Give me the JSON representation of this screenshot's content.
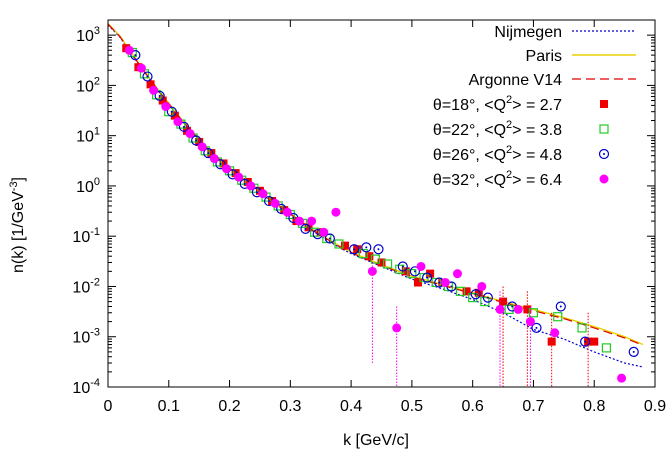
{
  "chart_data": {
    "type": "scatter",
    "xlabel": "k [GeV/c]",
    "ylabel_main": "n(k) [1/GeV",
    "ylabel_sup": "-3",
    "ylabel_end": "]",
    "xlim": [
      0,
      0.9
    ],
    "ylim": [
      0.0001,
      2000
    ],
    "yscale": "log",
    "grid": false,
    "legend_position": "top-right",
    "x_ticks": [
      {
        "value": 0,
        "label": "0"
      },
      {
        "value": 0.1,
        "label": "0.1"
      },
      {
        "value": 0.2,
        "label": "0.2"
      },
      {
        "value": 0.3,
        "label": "0.3"
      },
      {
        "value": 0.4,
        "label": "0.4"
      },
      {
        "value": 0.5,
        "label": "0.5"
      },
      {
        "value": 0.6,
        "label": "0.6"
      },
      {
        "value": 0.7,
        "label": "0.7"
      },
      {
        "value": 0.8,
        "label": "0.8"
      },
      {
        "value": 0.9,
        "label": "0.9"
      }
    ],
    "y_ticks": [
      {
        "value": 1000,
        "base": "10",
        "exp": "3"
      },
      {
        "value": 100,
        "base": "10",
        "exp": "2"
      },
      {
        "value": 10,
        "base": "10",
        "exp": "1"
      },
      {
        "value": 1,
        "base": "10",
        "exp": "0"
      },
      {
        "value": 0.1,
        "base": "10",
        "exp": "-1"
      },
      {
        "value": 0.01,
        "base": "10",
        "exp": "-2"
      },
      {
        "value": 0.001,
        "base": "10",
        "exp": "-3"
      },
      {
        "value": 0.0001,
        "base": "10",
        "exp": "-4"
      }
    ],
    "curves": [
      {
        "name": "Nijmegen",
        "color": "#0000cc",
        "style": "dotted",
        "x": [
          0,
          0.02,
          0.04,
          0.06,
          0.08,
          0.1,
          0.12,
          0.14,
          0.16,
          0.18,
          0.2,
          0.22,
          0.24,
          0.26,
          0.28,
          0.3,
          0.32,
          0.34,
          0.36,
          0.38,
          0.4,
          0.45,
          0.5,
          0.55,
          0.6,
          0.65,
          0.7,
          0.75,
          0.8,
          0.85,
          0.88
        ],
        "y": [
          1600,
          900,
          400,
          180,
          85,
          42,
          21,
          11,
          6,
          3.6,
          2.2,
          1.4,
          0.95,
          0.6,
          0.4,
          0.27,
          0.18,
          0.12,
          0.085,
          0.06,
          0.045,
          0.025,
          0.014,
          0.009,
          0.0055,
          0.003,
          0.0014,
          0.0009,
          0.0005,
          0.0003,
          0.00025
        ]
      },
      {
        "name": "Paris",
        "color": "#e8d000",
        "style": "solid",
        "x": [
          0,
          0.02,
          0.04,
          0.06,
          0.08,
          0.1,
          0.12,
          0.14,
          0.16,
          0.18,
          0.2,
          0.22,
          0.24,
          0.26,
          0.28,
          0.3,
          0.32,
          0.34,
          0.36,
          0.38,
          0.4,
          0.45,
          0.5,
          0.55,
          0.6,
          0.65,
          0.7,
          0.75,
          0.8,
          0.85,
          0.88
        ],
        "y": [
          1700,
          950,
          420,
          190,
          90,
          44,
          22,
          11.5,
          6.2,
          3.7,
          2.3,
          1.45,
          1.0,
          0.62,
          0.42,
          0.28,
          0.19,
          0.13,
          0.09,
          0.065,
          0.048,
          0.027,
          0.016,
          0.011,
          0.0075,
          0.005,
          0.0035,
          0.0024,
          0.0016,
          0.001,
          0.0007
        ]
      },
      {
        "name": "Argonne V14",
        "color": "#dd0000",
        "style": "dashed",
        "x": [
          0,
          0.02,
          0.04,
          0.06,
          0.08,
          0.1,
          0.12,
          0.14,
          0.16,
          0.18,
          0.2,
          0.22,
          0.24,
          0.26,
          0.28,
          0.3,
          0.32,
          0.34,
          0.36,
          0.38,
          0.4,
          0.45,
          0.5,
          0.55,
          0.6,
          0.65,
          0.7,
          0.75,
          0.8,
          0.85,
          0.88
        ],
        "y": [
          1650,
          920,
          410,
          185,
          88,
          43,
          21.5,
          11.2,
          6.1,
          3.65,
          2.25,
          1.42,
          0.98,
          0.61,
          0.41,
          0.275,
          0.185,
          0.125,
          0.088,
          0.063,
          0.047,
          0.026,
          0.0155,
          0.0105,
          0.0072,
          0.0048,
          0.0033,
          0.0023,
          0.0015,
          0.00095,
          0.00068
        ]
      }
    ],
    "series": [
      {
        "name": "θ=18°,  <Q",
        "name_sup": "2",
        "name_end": "> = 2.7",
        "marker": "filled-square",
        "color": "#ee0000",
        "points": [
          {
            "x": 0.03,
            "y": 550
          },
          {
            "x": 0.05,
            "y": 230
          },
          {
            "x": 0.07,
            "y": 105
          },
          {
            "x": 0.09,
            "y": 50
          },
          {
            "x": 0.11,
            "y": 25
          },
          {
            "x": 0.13,
            "y": 12.5
          },
          {
            "x": 0.15,
            "y": 7.5
          },
          {
            "x": 0.17,
            "y": 4.5
          },
          {
            "x": 0.19,
            "y": 2.8
          },
          {
            "x": 0.21,
            "y": 1.8
          },
          {
            "x": 0.23,
            "y": 1.2
          },
          {
            "x": 0.25,
            "y": 0.8
          },
          {
            "x": 0.27,
            "y": 0.5
          },
          {
            "x": 0.29,
            "y": 0.33
          },
          {
            "x": 0.31,
            "y": 0.2
          },
          {
            "x": 0.33,
            "y": 0.15
          },
          {
            "x": 0.35,
            "y": 0.12
          },
          {
            "x": 0.39,
            "y": 0.065
          },
          {
            "x": 0.41,
            "y": 0.055
          },
          {
            "x": 0.43,
            "y": 0.04
          },
          {
            "x": 0.45,
            "y": 0.03
          },
          {
            "x": 0.49,
            "y": 0.02
          },
          {
            "x": 0.51,
            "y": 0.012
          },
          {
            "x": 0.53,
            "y": 0.018
          },
          {
            "x": 0.55,
            "y": 0.012
          },
          {
            "x": 0.59,
            "y": 0.008
          },
          {
            "x": 0.61,
            "y": 0.0075
          },
          {
            "x": 0.65,
            "y": 0.005,
            "ylo": 0.0001,
            "yhi": 0.01
          },
          {
            "x": 0.69,
            "y": 0.0035,
            "ylo": 0.0001,
            "yhi": 0.008
          },
          {
            "x": 0.73,
            "y": 0.0008,
            "ylo": 0.0001,
            "yhi": 0.003
          },
          {
            "x": 0.79,
            "y": 0.0008,
            "ylo": 0.0001,
            "yhi": 0.003
          },
          {
            "x": 0.8,
            "y": 0.0008
          }
        ]
      },
      {
        "name": "θ=22°,  <Q",
        "name_sup": "2",
        "name_end": "> = 3.8",
        "marker": "open-square",
        "color": "#22cc22",
        "points": [
          {
            "x": 0.04,
            "y": 450
          },
          {
            "x": 0.06,
            "y": 170
          },
          {
            "x": 0.08,
            "y": 65
          },
          {
            "x": 0.1,
            "y": 30
          },
          {
            "x": 0.12,
            "y": 17
          },
          {
            "x": 0.14,
            "y": 9
          },
          {
            "x": 0.16,
            "y": 5
          },
          {
            "x": 0.18,
            "y": 3
          },
          {
            "x": 0.2,
            "y": 2
          },
          {
            "x": 0.22,
            "y": 1.3
          },
          {
            "x": 0.24,
            "y": 0.9
          },
          {
            "x": 0.26,
            "y": 0.6
          },
          {
            "x": 0.28,
            "y": 0.4
          },
          {
            "x": 0.3,
            "y": 0.27
          },
          {
            "x": 0.32,
            "y": 0.18
          },
          {
            "x": 0.34,
            "y": 0.12
          },
          {
            "x": 0.36,
            "y": 0.09
          },
          {
            "x": 0.38,
            "y": 0.07
          },
          {
            "x": 0.42,
            "y": 0.045
          },
          {
            "x": 0.44,
            "y": 0.035
          },
          {
            "x": 0.46,
            "y": 0.028
          },
          {
            "x": 0.48,
            "y": 0.022
          },
          {
            "x": 0.5,
            "y": 0.018
          },
          {
            "x": 0.52,
            "y": 0.015
          },
          {
            "x": 0.54,
            "y": 0.012
          },
          {
            "x": 0.56,
            "y": 0.01
          },
          {
            "x": 0.58,
            "y": 0.008
          },
          {
            "x": 0.6,
            "y": 0.006
          },
          {
            "x": 0.62,
            "y": 0.005
          },
          {
            "x": 0.66,
            "y": 0.0035
          },
          {
            "x": 0.7,
            "y": 0.003
          },
          {
            "x": 0.74,
            "y": 0.0025
          },
          {
            "x": 0.78,
            "y": 0.0015
          },
          {
            "x": 0.82,
            "y": 0.0006
          }
        ]
      },
      {
        "name": "θ=26°,  <Q",
        "name_sup": "2",
        "name_end": "> = 4.8",
        "marker": "open-circle-dot",
        "color": "#0000cc",
        "points": [
          {
            "x": 0.045,
            "y": 400
          },
          {
            "x": 0.065,
            "y": 150
          },
          {
            "x": 0.085,
            "y": 62
          },
          {
            "x": 0.105,
            "y": 30
          },
          {
            "x": 0.125,
            "y": 15
          },
          {
            "x": 0.145,
            "y": 8
          },
          {
            "x": 0.165,
            "y": 4.5
          },
          {
            "x": 0.185,
            "y": 2.7
          },
          {
            "x": 0.205,
            "y": 1.7
          },
          {
            "x": 0.225,
            "y": 1.1
          },
          {
            "x": 0.245,
            "y": 0.75
          },
          {
            "x": 0.265,
            "y": 0.5
          },
          {
            "x": 0.285,
            "y": 0.35
          },
          {
            "x": 0.305,
            "y": 0.23
          },
          {
            "x": 0.325,
            "y": 0.14
          },
          {
            "x": 0.345,
            "y": 0.11
          },
          {
            "x": 0.365,
            "y": 0.09
          },
          {
            "x": 0.405,
            "y": 0.055
          },
          {
            "x": 0.425,
            "y": 0.06
          },
          {
            "x": 0.445,
            "y": 0.055
          },
          {
            "x": 0.485,
            "y": 0.025
          },
          {
            "x": 0.505,
            "y": 0.02
          },
          {
            "x": 0.525,
            "y": 0.015
          },
          {
            "x": 0.545,
            "y": 0.012
          },
          {
            "x": 0.565,
            "y": 0.01
          },
          {
            "x": 0.605,
            "y": 0.007
          },
          {
            "x": 0.625,
            "y": 0.006
          },
          {
            "x": 0.665,
            "y": 0.004
          },
          {
            "x": 0.705,
            "y": 0.0015
          },
          {
            "x": 0.745,
            "y": 0.004
          },
          {
            "x": 0.785,
            "y": 0.0008
          },
          {
            "x": 0.865,
            "y": 0.0005
          }
        ]
      },
      {
        "name": "θ=32°,  <Q",
        "name_sup": "2",
        "name_end": "> = 6.4",
        "marker": "filled-circle",
        "color": "#ff00ff",
        "points": [
          {
            "x": 0.035,
            "y": 500
          },
          {
            "x": 0.055,
            "y": 220
          },
          {
            "x": 0.075,
            "y": 80
          },
          {
            "x": 0.095,
            "y": 38
          },
          {
            "x": 0.115,
            "y": 19
          },
          {
            "x": 0.135,
            "y": 11
          },
          {
            "x": 0.155,
            "y": 6
          },
          {
            "x": 0.175,
            "y": 3.5
          },
          {
            "x": 0.195,
            "y": 2.2
          },
          {
            "x": 0.215,
            "y": 1.5
          },
          {
            "x": 0.235,
            "y": 1.0
          },
          {
            "x": 0.255,
            "y": 0.7
          },
          {
            "x": 0.275,
            "y": 0.45
          },
          {
            "x": 0.295,
            "y": 0.3
          },
          {
            "x": 0.315,
            "y": 0.2
          },
          {
            "x": 0.335,
            "y": 0.2
          },
          {
            "x": 0.355,
            "y": 0.12
          },
          {
            "x": 0.375,
            "y": 0.3
          },
          {
            "x": 0.435,
            "y": 0.02,
            "ylo": 0.0003,
            "yhi": 0.03
          },
          {
            "x": 0.475,
            "y": 0.0015,
            "ylo": 0.0001,
            "yhi": 0.004
          },
          {
            "x": 0.515,
            "y": 0.025
          },
          {
            "x": 0.555,
            "y": 0.012
          },
          {
            "x": 0.575,
            "y": 0.018
          },
          {
            "x": 0.615,
            "y": 0.01
          },
          {
            "x": 0.645,
            "y": 0.0035,
            "ylo": 0.0001,
            "yhi": 0.008
          },
          {
            "x": 0.675,
            "y": 0.0035
          },
          {
            "x": 0.695,
            "y": 0.002,
            "ylo": 0.0001,
            "yhi": 0.004
          },
          {
            "x": 0.735,
            "y": 0.0012
          },
          {
            "x": 0.845,
            "y": 0.00015
          }
        ]
      }
    ]
  }
}
